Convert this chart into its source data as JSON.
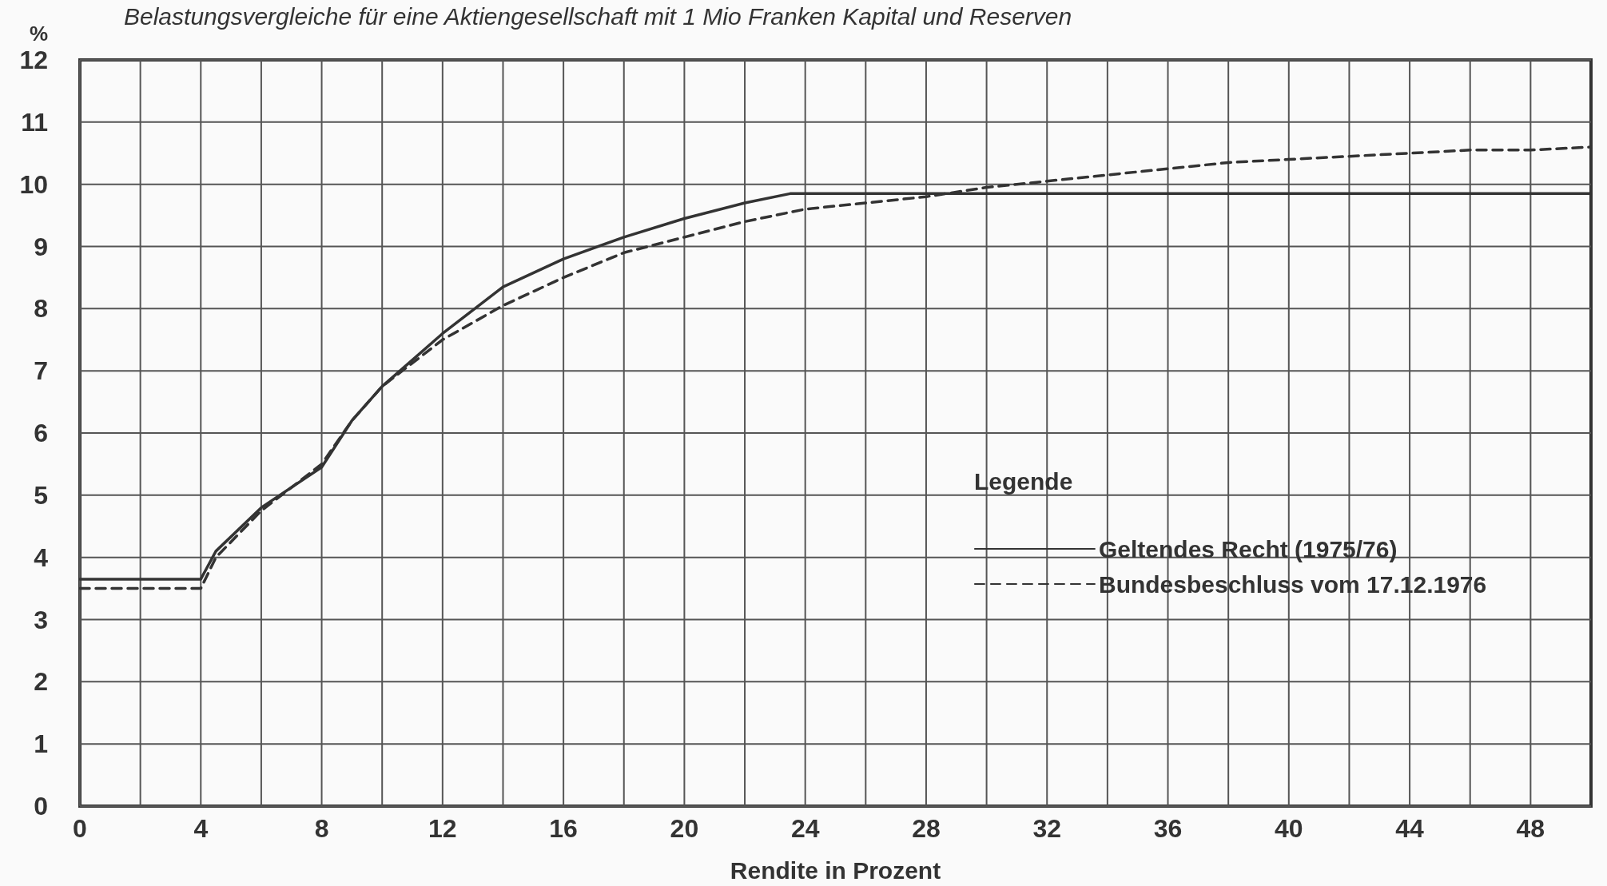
{
  "chart_data": {
    "type": "line",
    "title": "Belastungsvergleiche für eine Aktiengesellschaft mit 1 Mio Franken Kapital und Reserven",
    "xlabel": "Rendite in Prozent",
    "ylabel": "%",
    "legend_title": "Legende",
    "series": [
      {
        "name": "Geltendes Recht (1975/76)",
        "color": "#333333",
        "line_style": "solid",
        "x": [
          0,
          4,
          4.5,
          6,
          8,
          9,
          10,
          12,
          14,
          16,
          18,
          20,
          22,
          23.5,
          30,
          40,
          50
        ],
        "values": [
          3.65,
          3.65,
          4.1,
          4.8,
          5.45,
          6.2,
          6.75,
          7.6,
          8.35,
          8.8,
          9.15,
          9.45,
          9.7,
          9.85,
          9.85,
          9.85,
          9.85
        ]
      },
      {
        "name": "Bundesbeschluss vom 17.12.1976",
        "color": "#333333",
        "line_style": "dashed",
        "x": [
          0,
          4,
          4.5,
          6,
          8,
          9,
          10,
          12,
          14,
          16,
          18,
          20,
          22,
          24,
          26,
          28,
          30,
          32,
          34,
          36,
          38,
          40,
          42,
          44,
          46,
          48,
          50
        ],
        "values": [
          3.5,
          3.5,
          4.0,
          4.75,
          5.5,
          6.2,
          6.75,
          7.5,
          8.05,
          8.5,
          8.9,
          9.15,
          9.4,
          9.6,
          9.7,
          9.8,
          9.95,
          10.05,
          10.15,
          10.25,
          10.35,
          10.4,
          10.45,
          10.5,
          10.55,
          10.55,
          10.6
        ]
      }
    ],
    "xlim": [
      0,
      50
    ],
    "xticks": [
      0,
      4,
      8,
      12,
      16,
      20,
      24,
      28,
      32,
      36,
      40,
      44,
      48
    ],
    "ylim": [
      0,
      12
    ],
    "yticks": [
      0,
      1,
      2,
      3,
      4,
      5,
      6,
      7,
      8,
      9,
      10,
      11,
      12
    ],
    "grid": true,
    "legend": "bottom right",
    "marker": "none"
  }
}
